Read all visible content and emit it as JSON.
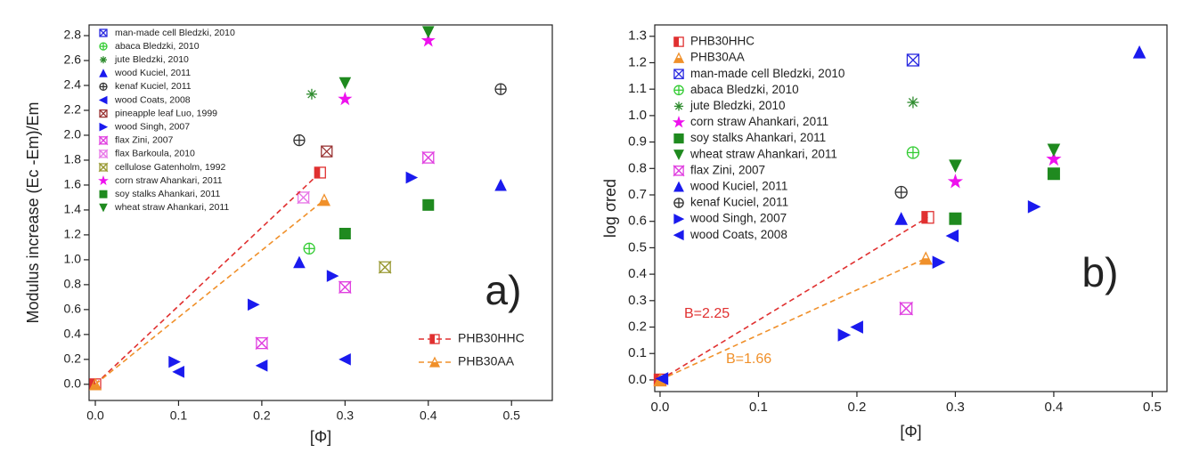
{
  "chart_data": [
    {
      "type": "scatter",
      "panel_label": "a)",
      "xlabel": "[Φ]",
      "ylabel": "Modulus increase (Ec -Em)/Em",
      "xlim": [
        -0.0075,
        0.549
      ],
      "ylim": [
        -0.13,
        2.886
      ],
      "xticks": [
        {
          "value": 0,
          "label": "0.0"
        },
        0.1,
        0.2,
        0.3,
        0.4,
        0.5
      ],
      "yticks": [
        {
          "value": 0,
          "label": "0.0"
        },
        0.2,
        0.4,
        0.6,
        0.8,
        {
          "value": 1,
          "label": "1.0"
        },
        1.2,
        1.4,
        1.6,
        1.8,
        {
          "value": 2,
          "label": "2.0"
        },
        2.2,
        2.4,
        2.6,
        2.8
      ],
      "series": [
        {
          "name": "man-made cell Bledzki, 2010",
          "color": "#2a2ae0",
          "marker": "box-x",
          "legend": "upper left",
          "x": [],
          "y": []
        },
        {
          "name": "abaca Bledzki, 2010",
          "color": "#33cc33",
          "marker": "circle-plus",
          "legend": "upper left",
          "x": [
            0.257
          ],
          "y": [
            1.09
          ]
        },
        {
          "name": "jute Bledzki, 2010",
          "color": "#2e8b2e",
          "marker": "asterisk",
          "legend": "upper left",
          "x": [
            0.26
          ],
          "y": [
            2.33
          ]
        },
        {
          "name": "wood Kuciel, 2011",
          "color": "#1a1aee",
          "marker": "triangle-up",
          "legend": "upper left",
          "x": [
            0.245,
            0.487
          ],
          "y": [
            0.98,
            1.6
          ]
        },
        {
          "name": "kenaf Kuciel, 2011",
          "color": "#333333",
          "marker": "circle-plus",
          "legend": "upper left",
          "x": [
            0.245,
            0.487
          ],
          "y": [
            1.96,
            2.37
          ]
        },
        {
          "name": "wood Coats, 2008",
          "color": "#1a1aee",
          "marker": "triangle-left",
          "legend": "upper left",
          "x": [
            0.1,
            0.2,
            0.3
          ],
          "y": [
            0.1,
            0.15,
            0.2
          ]
        },
        {
          "name": "pineapple leaf Luo, 1999",
          "color": "#993333",
          "marker": "box-x",
          "legend": "upper left",
          "x": [
            0.278
          ],
          "y": [
            1.87
          ]
        },
        {
          "name": "wood Singh, 2007",
          "color": "#1a1aee",
          "marker": "triangle-right",
          "legend": "upper left",
          "x": [
            0.095,
            0.19,
            0.285,
            0.38
          ],
          "y": [
            0.18,
            0.64,
            0.87,
            1.66
          ]
        },
        {
          "name": "flax Zini, 2007",
          "color": "#e040e0",
          "marker": "hourglass",
          "legend": "upper left",
          "x": [
            0.2,
            0.3,
            0.4
          ],
          "y": [
            0.33,
            0.78,
            1.82
          ]
        },
        {
          "name": "flax Barkoula, 2010",
          "color": "#e878e8",
          "marker": "hourglass",
          "legend": "upper left",
          "x": [
            0.25
          ],
          "y": [
            1.5
          ]
        },
        {
          "name": "cellulose Gatenholm, 1992",
          "color": "#999933",
          "marker": "hourglass",
          "legend": "upper left",
          "x": [
            0.348
          ],
          "y": [
            0.94
          ]
        },
        {
          "name": "corn straw Ahankari, 2011",
          "color": "#ee11ee",
          "marker": "star",
          "legend": "upper left",
          "x": [
            0.3,
            0.4
          ],
          "y": [
            2.29,
            2.76
          ]
        },
        {
          "name": "soy stalks Ahankari, 2011",
          "color": "#1f8a1f",
          "marker": "square",
          "legend": "upper left",
          "x": [
            0.3,
            0.4
          ],
          "y": [
            1.21,
            1.44
          ]
        },
        {
          "name": "wheat straw Ahankari, 2011",
          "color": "#1f8a1f",
          "marker": "triangle-down",
          "legend": "upper left",
          "x": [
            0.3,
            0.4
          ],
          "y": [
            2.42,
            2.83
          ]
        },
        {
          "name": "PHB30HHC",
          "color": "#e03030",
          "marker": "half-square",
          "dashed": true,
          "legend": "lower right",
          "x": [
            0,
            0.27
          ],
          "y": [
            0,
            1.7
          ]
        },
        {
          "name": "PHB30AA",
          "color": "#f0902a",
          "marker": "half-triangle",
          "dashed": true,
          "legend": "lower right",
          "x": [
            0,
            0.275
          ],
          "y": [
            0,
            1.48
          ]
        }
      ]
    },
    {
      "type": "scatter",
      "panel_label": "b)",
      "xlabel": "[Φ]",
      "ylabel": "log σred",
      "xlim": [
        -0.0054,
        0.515
      ],
      "ylim": [
        -0.044,
        1.343
      ],
      "xticks": [
        {
          "value": 0,
          "label": "0.0"
        },
        0.1,
        0.2,
        0.3,
        0.4,
        0.5
      ],
      "yticks": [
        {
          "value": 0,
          "label": "0.0"
        },
        0.1,
        0.2,
        0.3,
        0.4,
        0.5,
        0.6,
        0.7,
        0.8,
        0.9,
        {
          "value": 1,
          "label": "1.0"
        },
        1.1,
        1.2,
        1.3
      ],
      "annotations": [
        {
          "text": "B=2.25",
          "color": "#e03030"
        },
        {
          "text": "B=1.66",
          "color": "#f0902a"
        }
      ],
      "series": [
        {
          "name": "PHB30HHC",
          "color": "#e03030",
          "marker": "half-square",
          "dashed": true,
          "legend": "upper left",
          "x": [
            0,
            0.272
          ],
          "y": [
            0,
            0.615
          ]
        },
        {
          "name": "PHB30AA",
          "color": "#f0902a",
          "marker": "half-triangle",
          "dashed": true,
          "legend": "upper left",
          "x": [
            0,
            0.27
          ],
          "y": [
            0,
            0.46
          ]
        },
        {
          "name": "man-made cell Bledzki, 2010",
          "color": "#2a2ae0",
          "marker": "box-x",
          "legend": "upper left",
          "x": [
            0.257
          ],
          "y": [
            1.21
          ]
        },
        {
          "name": "abaca Bledzki, 2010",
          "color": "#33cc33",
          "marker": "circle-plus",
          "legend": "upper left",
          "x": [
            0.257
          ],
          "y": [
            0.86
          ]
        },
        {
          "name": "jute Bledzki, 2010",
          "color": "#2e8b2e",
          "marker": "asterisk",
          "legend": "upper left",
          "x": [
            0.257
          ],
          "y": [
            1.05
          ]
        },
        {
          "name": "corn straw Ahankari, 2011",
          "color": "#ee11ee",
          "marker": "star",
          "legend": "upper left",
          "x": [
            0.3,
            0.4
          ],
          "y": [
            0.75,
            0.835
          ]
        },
        {
          "name": "soy stalks Ahankari, 2011",
          "color": "#1f8a1f",
          "marker": "square",
          "legend": "upper left",
          "x": [
            0.3,
            0.4
          ],
          "y": [
            0.61,
            0.78
          ]
        },
        {
          "name": "wheat straw Ahankari, 2011",
          "color": "#1f8a1f",
          "marker": "triangle-down",
          "legend": "upper left",
          "x": [
            0.3,
            0.4
          ],
          "y": [
            0.81,
            0.87
          ]
        },
        {
          "name": "flax Zini, 2007",
          "color": "#e040e0",
          "marker": "hourglass",
          "legend": "upper left",
          "x": [
            0.25
          ],
          "y": [
            0.27
          ]
        },
        {
          "name": "wood Kuciel, 2011",
          "color": "#1a1aee",
          "marker": "triangle-up",
          "legend": "upper left",
          "x": [
            0.245,
            0.487
          ],
          "y": [
            0.61,
            1.24
          ]
        },
        {
          "name": "kenaf Kuciel, 2011",
          "color": "#333333",
          "marker": "circle-plus",
          "legend": "upper left",
          "x": [
            0.245
          ],
          "y": [
            0.71
          ]
        },
        {
          "name": "wood Singh, 2007",
          "color": "#1a1aee",
          "marker": "triangle-right",
          "legend": "upper left",
          "x": [
            0.187,
            0.283,
            0.38
          ],
          "y": [
            0.17,
            0.445,
            0.655
          ]
        },
        {
          "name": "wood Coats, 2008",
          "color": "#1a1aee",
          "marker": "triangle-left",
          "legend": "upper left",
          "x": [
            0.002,
            0.2,
            0.297
          ],
          "y": [
            0.005,
            0.2,
            0.545
          ]
        }
      ]
    }
  ]
}
